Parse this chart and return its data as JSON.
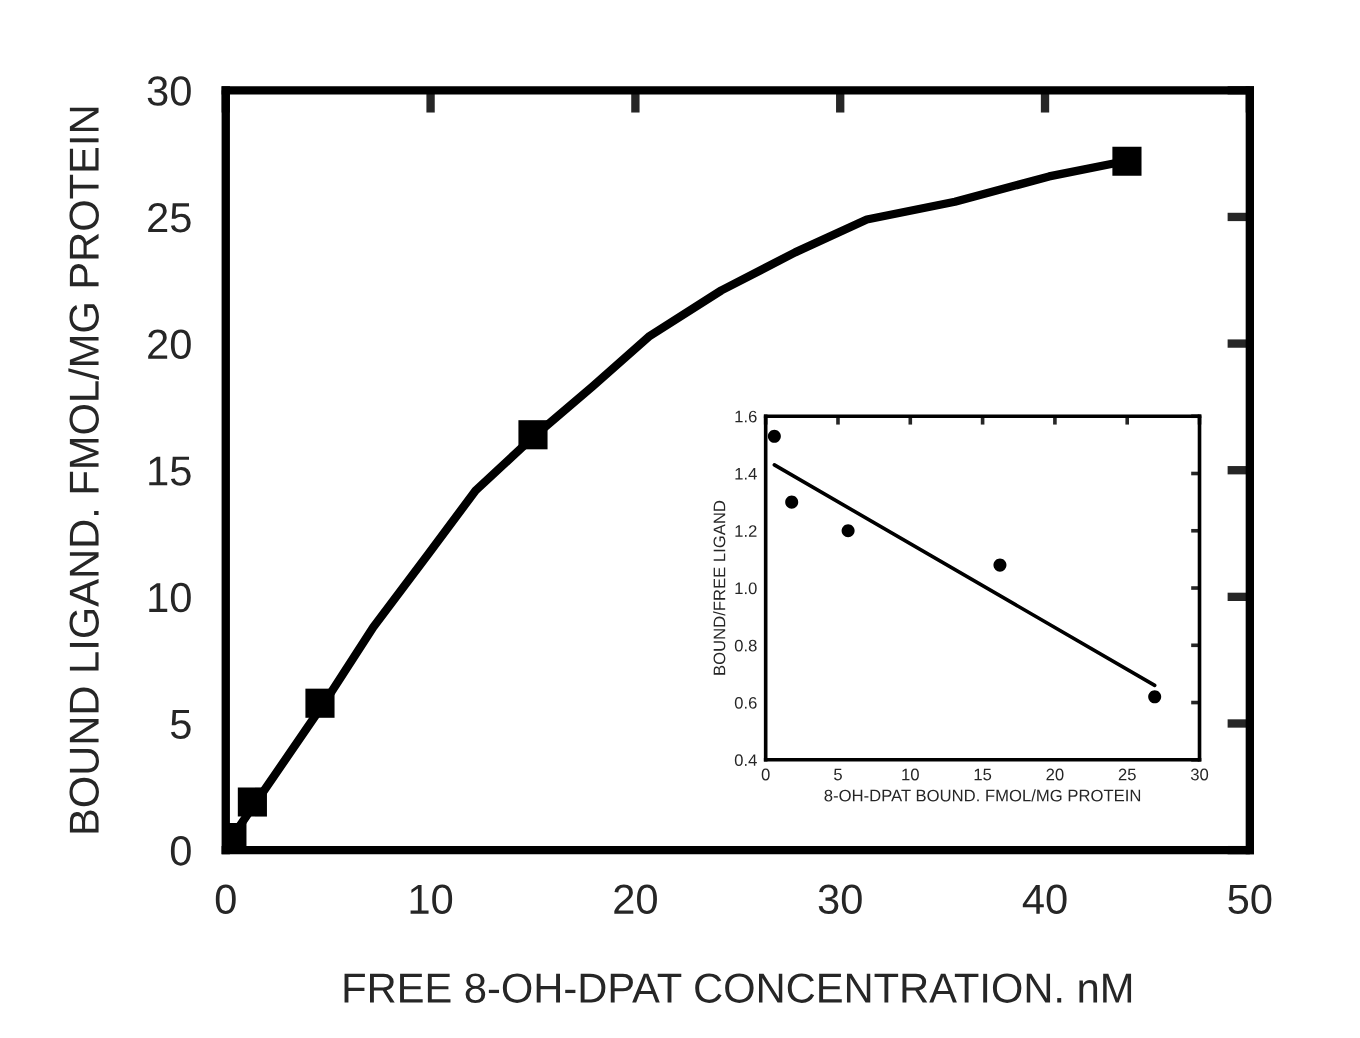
{
  "chart_data": [
    {
      "type": "scatter",
      "xlabel": "FREE 8-OH-DPAT CONCENTRATION. nM",
      "ylabel": "BOUND LIGAND. FMOL/MG PROTEIN",
      "xlim": [
        0,
        50
      ],
      "ylim": [
        0,
        30
      ],
      "xticks": [
        0,
        10,
        20,
        30,
        40,
        50
      ],
      "yticks": [
        0,
        5,
        10,
        15,
        20,
        25,
        30
      ],
      "grid": false,
      "legend": false,
      "series": [
        {
          "type": "scatter",
          "marker": "square",
          "color": "#000000",
          "x": [
            0.3,
            1.3,
            4.6,
            15,
            44
          ],
          "values": [
            0.5,
            1.9,
            5.8,
            16.4,
            27.2
          ]
        },
        {
          "type": "line",
          "marker": "none",
          "line_style": "solid",
          "color": "#000000",
          "x": [
            0.3,
            1.4,
            4.8,
            7.2,
            9.9,
            12.2,
            15,
            17.9,
            20.7,
            24.2,
            27.8,
            31.3,
            35.6,
            40.2,
            43.9
          ],
          "values": [
            0.5,
            1.8,
            5.8,
            8.8,
            11.7,
            14.2,
            16.3,
            18.3,
            20.3,
            22.1,
            23.6,
            24.9,
            25.6,
            26.6,
            27.2
          ]
        }
      ]
    },
    {
      "type": "scatter",
      "xlabel": "8-OH-DPAT BOUND. FMOL/MG PROTEIN",
      "ylabel": "BOUND/FREE LIGAND",
      "xlim": [
        0,
        30
      ],
      "ylim": [
        0.4,
        1.6
      ],
      "xticks": [
        0,
        5,
        10,
        15,
        20,
        25,
        30
      ],
      "yticks": [
        {
          "value": 0.4,
          "label": "0.4"
        },
        {
          "value": 0.6,
          "label": "0.6"
        },
        {
          "value": 0.8,
          "label": "0.8"
        },
        {
          "value": 1.0,
          "label": "1.0"
        },
        {
          "value": 1.2,
          "label": "1.2"
        },
        {
          "value": 1.4,
          "label": "1.4"
        },
        {
          "value": 1.6,
          "label": "1.6"
        }
      ],
      "grid": false,
      "legend": false,
      "series": [
        {
          "type": "scatter",
          "marker": "circle",
          "color": "#000000",
          "x": [
            0.6,
            1.8,
            5.7,
            16.2,
            26.9
          ],
          "values": [
            1.53,
            1.3,
            1.2,
            1.08,
            0.62
          ]
        },
        {
          "type": "line",
          "marker": "none",
          "line_style": "solid",
          "color": "#000000",
          "x": [
            0.6,
            26.9
          ],
          "values": [
            1.43,
            0.66
          ]
        }
      ]
    }
  ]
}
